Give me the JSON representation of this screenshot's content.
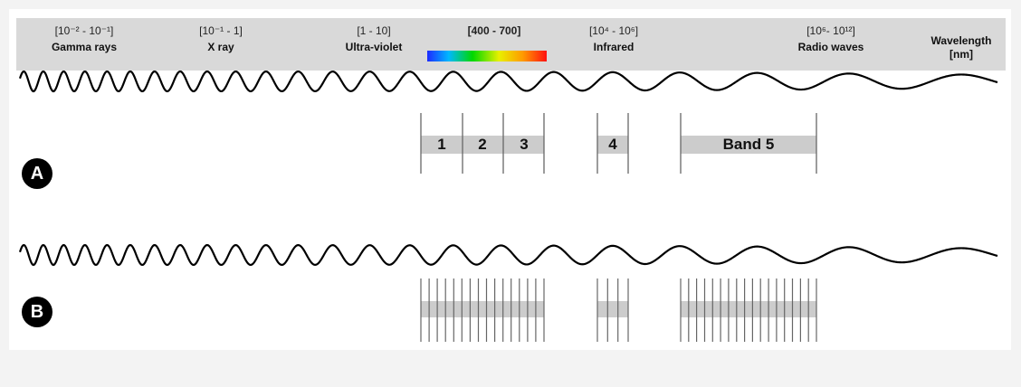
{
  "regions": [
    {
      "range": "[10⁻² - 10⁻¹]",
      "name": "Gamma rays"
    },
    {
      "range": "[10⁻¹ - 1]",
      "name": "X ray"
    },
    {
      "range": "[1 - 10]",
      "name": "Ultra-violet"
    },
    {
      "range": "[400 - 700]",
      "name": ""
    },
    {
      "range": "[10⁴ - 10⁶]",
      "name": "Infrared"
    },
    {
      "range": "[10⁶- 10¹²]",
      "name": "Radio waves"
    }
  ],
  "axis_label": {
    "line1": "Wavelength",
    "line2": "[nm]"
  },
  "panel_a": {
    "badge": "A",
    "bands": [
      "1",
      "2",
      "3",
      "4",
      "Band 5"
    ]
  },
  "panel_b": {
    "badge": "B"
  },
  "colors": {
    "header_bg": "#d9d9d9",
    "band_fill": "#cccccc",
    "wave": "#000000",
    "badge": "#000000"
  }
}
